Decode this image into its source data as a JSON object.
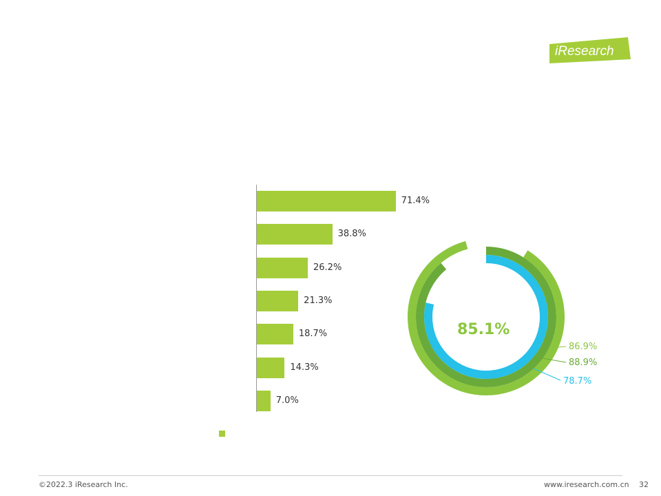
{
  "header": {
    "title": "",
    "subtitle": ""
  },
  "logo": {
    "text": "iResearch",
    "tagline": ""
  },
  "colors": {
    "accent": "#8cc63f",
    "bar": "#a5cd39",
    "tier1": "#8cc63f",
    "tier2": "#6aaa3a",
    "tier3": "#26c0e8"
  },
  "chart_data": [
    {
      "type": "bar",
      "orientation": "horizontal",
      "title": "",
      "categories": [
        "",
        "",
        "",
        "",
        "",
        "",
        ""
      ],
      "values": [
        71.4,
        38.8,
        26.2,
        21.3,
        18.7,
        14.3,
        7.0
      ],
      "value_labels": [
        "71.4%",
        "38.8%",
        "26.2%",
        "21.3%",
        "18.7%",
        "14.3%",
        "7.0%"
      ],
      "xlim": [
        0,
        100
      ],
      "grid": false,
      "legend": {
        "position": "bottom",
        "entries": [
          ""
        ]
      }
    },
    {
      "type": "pie",
      "style": "concentric-rings",
      "center_label": "",
      "center_value": "85.1%",
      "series": [
        {
          "name": "",
          "value": 86.9,
          "label": "86.9%",
          "color": "#8cc63f"
        },
        {
          "name": "",
          "value": 88.9,
          "label": "88.9%",
          "color": "#6aaa3a"
        },
        {
          "name": "",
          "value": 78.7,
          "label": "78.7%",
          "color": "#26c0e8"
        }
      ]
    }
  ],
  "footer": {
    "note": "",
    "copyright": "©2022.3 iResearch Inc.",
    "url": "www.iresearch.com.cn",
    "page": "32"
  }
}
